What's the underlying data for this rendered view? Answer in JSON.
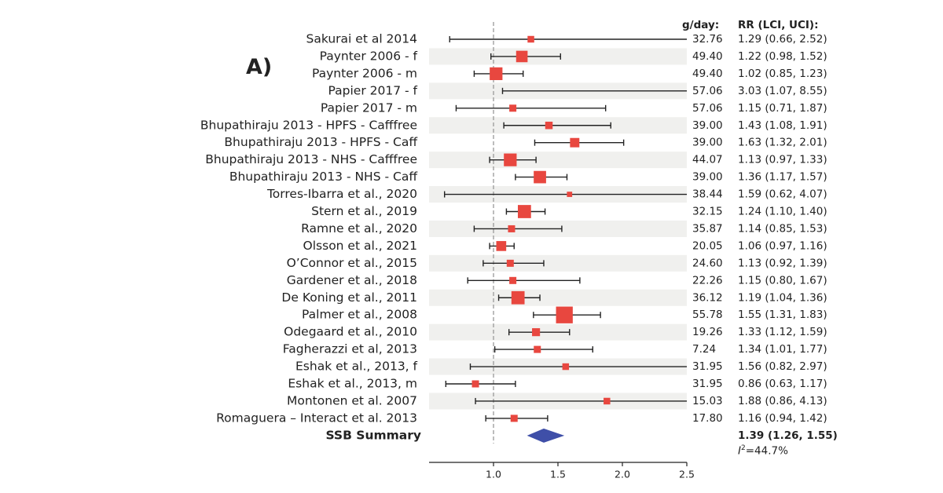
{
  "panel_label": "A)",
  "chart_data": {
    "type": "forest",
    "column_headers": {
      "dose": "g/day:",
      "rr": "RR (LCI, UCI):"
    },
    "xlim": [
      0.5,
      2.5
    ],
    "xticks": [
      1.0,
      1.5,
      2.0,
      2.5
    ],
    "xtick_labels": [
      "1.0",
      "1.5",
      "2.0",
      "2.5"
    ],
    "reference_line": 1.0,
    "studies": [
      {
        "label": "Sakurai et al 2014",
        "dose": "32.76",
        "rr": 1.29,
        "lci": 0.66,
        "uci": 2.52,
        "rr_text": "1.29 (0.66, 2.52)",
        "weight": 0.8
      },
      {
        "label": "Paynter 2006 - f",
        "dose": "49.40",
        "rr": 1.22,
        "lci": 0.98,
        "uci": 1.52,
        "rr_text": "1.22 (0.98, 1.52)",
        "weight": 4.5
      },
      {
        "label": "Paynter 2006 - m",
        "dose": "49.40",
        "rr": 1.02,
        "lci": 0.85,
        "uci": 1.23,
        "rr_text": "1.02 (0.85, 1.23)",
        "weight": 6.0
      },
      {
        "label": "Papier 2017 - f",
        "dose": "57.06",
        "rr": 3.03,
        "lci": 1.07,
        "uci": 8.55,
        "rr_text": "3.03 (1.07, 8.55)",
        "weight": 0.3
      },
      {
        "label": "Papier 2017 - m",
        "dose": "57.06",
        "rr": 1.15,
        "lci": 0.71,
        "uci": 1.87,
        "rr_text": "1.15 (0.71, 1.87)",
        "weight": 1.0
      },
      {
        "label": "Bhupathiraju 2013 - HPFS - Cafffree",
        "dose": "39.00",
        "rr": 1.43,
        "lci": 1.08,
        "uci": 1.91,
        "rr_text": "1.43 (1.08, 1.91)",
        "weight": 1.2
      },
      {
        "label": "Bhupathiraju 2013 - HPFS - Caff",
        "dose": "39.00",
        "rr": 1.63,
        "lci": 1.32,
        "uci": 2.01,
        "rr_text": "1.63 (1.32, 2.01)",
        "weight": 2.5
      },
      {
        "label": "Bhupathiraju 2013 - NHS - Cafffree",
        "dose": "44.07",
        "rr": 1.13,
        "lci": 0.97,
        "uci": 1.33,
        "rr_text": "1.13 (0.97, 1.33)",
        "weight": 6.0
      },
      {
        "label": "Bhupathiraju 2013 - NHS - Caff",
        "dose": "39.00",
        "rr": 1.36,
        "lci": 1.17,
        "uci": 1.57,
        "rr_text": "1.36 (1.17, 1.57)",
        "weight": 5.5
      },
      {
        "label": "Torres-Ibarra et al., 2020",
        "dose": "38.44",
        "rr": 1.59,
        "lci": 0.62,
        "uci": 4.07,
        "rr_text": "1.59 (0.62, 4.07)",
        "weight": 0.3
      },
      {
        "label": "Stern et al., 2019",
        "dose": "32.15",
        "rr": 1.24,
        "lci": 1.1,
        "uci": 1.4,
        "rr_text": "1.24 (1.10, 1.40)",
        "weight": 6.5
      },
      {
        "label": "Ramne et al., 2020",
        "dose": "35.87",
        "rr": 1.14,
        "lci": 0.85,
        "uci": 1.53,
        "rr_text": "1.14 (0.85, 1.53)",
        "weight": 1.0
      },
      {
        "label": "Olsson et al., 2021",
        "dose": "20.05",
        "rr": 1.06,
        "lci": 0.97,
        "uci": 1.16,
        "rr_text": "1.06 (0.97, 1.16)",
        "weight": 3.0
      },
      {
        "label": "O’Connor et al., 2015",
        "dose": "24.60",
        "rr": 1.13,
        "lci": 0.92,
        "uci": 1.39,
        "rr_text": "1.13 (0.92, 1.39)",
        "weight": 1.0
      },
      {
        "label": "Gardener et al., 2018",
        "dose": "22.26",
        "rr": 1.15,
        "lci": 0.8,
        "uci": 1.67,
        "rr_text": "1.15 (0.80, 1.67)",
        "weight": 1.0
      },
      {
        "label": "De Koning et al., 2011",
        "dose": "36.12",
        "rr": 1.19,
        "lci": 1.04,
        "uci": 1.36,
        "rr_text": "1.19 (1.04, 1.36)",
        "weight": 6.5
      },
      {
        "label": "Palmer et al., 2008",
        "dose": "55.78",
        "rr": 1.55,
        "lci": 1.31,
        "uci": 1.83,
        "rr_text": "1.55 (1.31, 1.83)",
        "weight": 12.0
      },
      {
        "label": "Odegaard et al., 2010",
        "dose": "19.26",
        "rr": 1.33,
        "lci": 1.12,
        "uci": 1.59,
        "rr_text": "1.33 (1.12, 1.59)",
        "weight": 1.5
      },
      {
        "label": "Fagherazzi et al, 2013",
        "dose": "7.24",
        "rr": 1.34,
        "lci": 1.01,
        "uci": 1.77,
        "rr_text": "1.34 (1.01, 1.77)",
        "weight": 1.0
      },
      {
        "label": "Eshak et al., 2013, f",
        "dose": "31.95",
        "rr": 1.56,
        "lci": 0.82,
        "uci": 2.97,
        "rr_text": "1.56 (0.82, 2.97)",
        "weight": 0.8
      },
      {
        "label": "Eshak et al., 2013, m",
        "dose": "31.95",
        "rr": 0.86,
        "lci": 0.63,
        "uci": 1.17,
        "rr_text": "0.86 (0.63, 1.17)",
        "weight": 1.0
      },
      {
        "label": "Montonen et al. 2007",
        "dose": "15.03",
        "rr": 1.88,
        "lci": 0.86,
        "uci": 4.13,
        "rr_text": "1.88 (0.86, 4.13)",
        "weight": 0.8
      },
      {
        "label": "Romaguera – Interact et al. 2013",
        "dose": "17.80",
        "rr": 1.16,
        "lci": 0.94,
        "uci": 1.42,
        "rr_text": "1.16 (0.94, 1.42)",
        "weight": 1.0
      }
    ],
    "summary": {
      "label": "SSB Summary",
      "rr": 1.39,
      "lci": 1.26,
      "uci": 1.55,
      "rr_text": "1.39 (1.26, 1.55)"
    },
    "heterogeneity": {
      "symbol": "I",
      "sup": "2",
      "text": "=44.7%"
    }
  },
  "colors": {
    "marker": "#e8473f",
    "summary": "#3f4fa8",
    "line": "#222222",
    "band": "#f0f0ee",
    "refline": "#999999"
  }
}
